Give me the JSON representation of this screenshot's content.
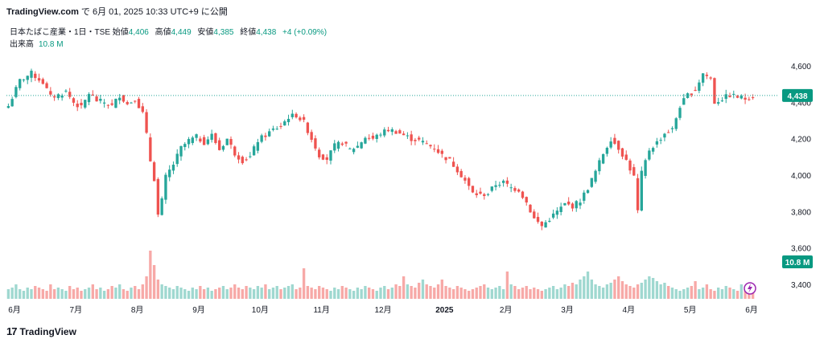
{
  "header": {
    "site": "TradingView.com",
    "published": "で 6月 01, 2025 10:33 UTC+9 に公開"
  },
  "legend": {
    "symbol": "日本たばこ産業・1日・TSE",
    "open_label": "始値",
    "open": "4,406",
    "high_label": "高値",
    "high": "4,449",
    "low_label": "安値",
    "low": "4,385",
    "close_label": "終値",
    "close": "4,438",
    "change": "+4 (+0.09%)",
    "volume_label": "出来高",
    "volume": "10.8 M"
  },
  "footer": {
    "brand": "TradingView",
    "logo_text": "17"
  },
  "colors": {
    "up": "#26a69a",
    "down": "#ef5350",
    "up_vol": "#9fd8d0",
    "down_vol": "#f7a9a7",
    "label": "#089981",
    "axis_text": "#131722",
    "lightning": "#9c27b0"
  },
  "chart_data": {
    "type": "candlestick",
    "price_axis_ticks": [
      "4,600",
      "4,400",
      "4,200",
      "4,000",
      "3,800",
      "3,600",
      "3,400"
    ],
    "price_ylim": [
      3320,
      4720
    ],
    "time_axis_labels": [
      "6月",
      "7月",
      "8月",
      "9月",
      "10月",
      "11月",
      "12月",
      "2025",
      "2月",
      "3月",
      "4月",
      "5月",
      "6月"
    ],
    "last_price_label": "4,438",
    "last_volume_label": "10.8 M",
    "close_path": [
      [
        0,
        4380
      ],
      [
        3,
        4520
      ],
      [
        6,
        4560
      ],
      [
        9,
        4510
      ],
      [
        11,
        4430
      ],
      [
        13,
        4440
      ],
      [
        15,
        4460
      ],
      [
        17,
        4400
      ],
      [
        19,
        4370
      ],
      [
        21,
        4450
      ],
      [
        23,
        4410
      ],
      [
        25,
        4400
      ],
      [
        27,
        4380
      ],
      [
        29,
        4440
      ],
      [
        31,
        4390
      ],
      [
        33,
        4420
      ],
      [
        35,
        4340
      ],
      [
        36,
        4220
      ],
      [
        37,
        4080
      ],
      [
        38,
        3980
      ],
      [
        39,
        3780
      ],
      [
        40,
        3860
      ],
      [
        41,
        3990
      ],
      [
        43,
        4060
      ],
      [
        45,
        4150
      ],
      [
        47,
        4190
      ],
      [
        49,
        4210
      ],
      [
        51,
        4180
      ],
      [
        53,
        4220
      ],
      [
        55,
        4140
      ],
      [
        57,
        4200
      ],
      [
        59,
        4120
      ],
      [
        61,
        4080
      ],
      [
        63,
        4100
      ],
      [
        65,
        4190
      ],
      [
        67,
        4220
      ],
      [
        69,
        4250
      ],
      [
        71,
        4270
      ],
      [
        73,
        4320
      ],
      [
        75,
        4330
      ],
      [
        77,
        4290
      ],
      [
        79,
        4200
      ],
      [
        81,
        4110
      ],
      [
        83,
        4090
      ],
      [
        85,
        4160
      ],
      [
        87,
        4180
      ],
      [
        89,
        4140
      ],
      [
        91,
        4160
      ],
      [
        93,
        4210
      ],
      [
        95,
        4200
      ],
      [
        97,
        4230
      ],
      [
        99,
        4250
      ],
      [
        101,
        4240
      ],
      [
        103,
        4220
      ],
      [
        105,
        4200
      ],
      [
        107,
        4190
      ],
      [
        109,
        4170
      ],
      [
        111,
        4150
      ],
      [
        113,
        4110
      ],
      [
        115,
        4080
      ],
      [
        117,
        4030
      ],
      [
        119,
        3970
      ],
      [
        121,
        3900
      ],
      [
        123,
        3890
      ],
      [
        125,
        3900
      ],
      [
        127,
        3950
      ],
      [
        129,
        3960
      ],
      [
        131,
        3930
      ],
      [
        133,
        3920
      ],
      [
        135,
        3850
      ],
      [
        137,
        3760
      ],
      [
        139,
        3720
      ],
      [
        141,
        3760
      ],
      [
        143,
        3800
      ],
      [
        145,
        3840
      ],
      [
        147,
        3830
      ],
      [
        149,
        3860
      ],
      [
        151,
        3930
      ],
      [
        153,
        4020
      ],
      [
        155,
        4120
      ],
      [
        157,
        4200
      ],
      [
        159,
        4150
      ],
      [
        161,
        4080
      ],
      [
        163,
        3990
      ],
      [
        164,
        3800
      ],
      [
        165,
        4010
      ],
      [
        167,
        4140
      ],
      [
        169,
        4180
      ],
      [
        171,
        4230
      ],
      [
        173,
        4250
      ],
      [
        175,
        4380
      ],
      [
        177,
        4440
      ],
      [
        179,
        4470
      ],
      [
        181,
        4560
      ],
      [
        183,
        4530
      ],
      [
        184,
        4400
      ],
      [
        186,
        4420
      ],
      [
        188,
        4440
      ],
      [
        190,
        4430
      ],
      [
        192,
        4420
      ],
      [
        194,
        4438
      ]
    ],
    "volume_millions_pattern": [
      6,
      7,
      9,
      6,
      5,
      7,
      6,
      8,
      7,
      6,
      5,
      9,
      6,
      7,
      6,
      5,
      8,
      6,
      7,
      5,
      6,
      7,
      9,
      6,
      7,
      5,
      6,
      8,
      7,
      9,
      6,
      5,
      7,
      8,
      6,
      9,
      14,
      30,
      21,
      12,
      9,
      8,
      7,
      6,
      8,
      7,
      6,
      5,
      7,
      6,
      8,
      6,
      7,
      5,
      6,
      7,
      8,
      6,
      7,
      9,
      7,
      6,
      8,
      7,
      6,
      8,
      7,
      9,
      6,
      7,
      8,
      6,
      7,
      8,
      9,
      6,
      7,
      19,
      8,
      7,
      6,
      8,
      7,
      6,
      5,
      7,
      6,
      8,
      7,
      6,
      5,
      7,
      6,
      8,
      7,
      6,
      5,
      7,
      8,
      6,
      7,
      9,
      8,
      14,
      9,
      8,
      7,
      10,
      12,
      9,
      8,
      7,
      9,
      12,
      8,
      7,
      6,
      8,
      7,
      6,
      5,
      6,
      7,
      8,
      9,
      7,
      6,
      7,
      8,
      6,
      17,
      9,
      8,
      6,
      7,
      8,
      6,
      7,
      6,
      5,
      6,
      7,
      8,
      6,
      7,
      9,
      8,
      10,
      9,
      12,
      14,
      17,
      12,
      9,
      8,
      7,
      9,
      10,
      12,
      14,
      11,
      9,
      8,
      7,
      9,
      10,
      12,
      14,
      13,
      11,
      9,
      10,
      8,
      7,
      6,
      5,
      6,
      7,
      8,
      11
    ]
  }
}
